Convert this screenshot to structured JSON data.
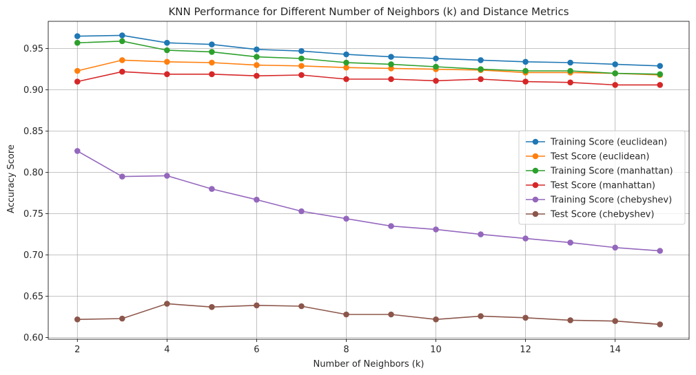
{
  "chart_data": {
    "type": "line",
    "title": "KNN Performance for Different Number of Neighbors (k) and Distance Metrics",
    "xlabel": "Number of Neighbors (k)",
    "ylabel": "Accuracy Score",
    "x": [
      2,
      3,
      4,
      5,
      6,
      7,
      8,
      9,
      10,
      11,
      12,
      13,
      14,
      15
    ],
    "xlim": [
      1.35,
      15.65
    ],
    "ylim": [
      0.598,
      0.983
    ],
    "xticks": [
      2,
      4,
      6,
      8,
      10,
      12,
      14
    ],
    "xtick_labels": [
      "2",
      "4",
      "6",
      "8",
      "10",
      "12",
      "14"
    ],
    "yticks": [
      0.6,
      0.65,
      0.7,
      0.75,
      0.8,
      0.85,
      0.9,
      0.95
    ],
    "ytick_labels": [
      "0.60",
      "0.65",
      "0.70",
      "0.75",
      "0.80",
      "0.85",
      "0.90",
      "0.95"
    ],
    "grid": true,
    "legend_position": "center-right",
    "series": [
      {
        "name": "Training Score (euclidean)",
        "color": "#1f77b4",
        "values": [
          0.965,
          0.966,
          0.957,
          0.955,
          0.949,
          0.947,
          0.943,
          0.94,
          0.938,
          0.936,
          0.934,
          0.933,
          0.931,
          0.929
        ]
      },
      {
        "name": "Test Score (euclidean)",
        "color": "#ff7f0e",
        "values": [
          0.923,
          0.936,
          0.934,
          0.933,
          0.93,
          0.929,
          0.927,
          0.926,
          0.925,
          0.924,
          0.921,
          0.921,
          0.92,
          0.918
        ]
      },
      {
        "name": "Training Score (manhattan)",
        "color": "#2ca02c",
        "values": [
          0.957,
          0.959,
          0.948,
          0.946,
          0.94,
          0.938,
          0.933,
          0.931,
          0.928,
          0.925,
          0.923,
          0.923,
          0.92,
          0.919
        ]
      },
      {
        "name": "Test Score (manhattan)",
        "color": "#d62728",
        "values": [
          0.91,
          0.922,
          0.919,
          0.919,
          0.917,
          0.918,
          0.913,
          0.913,
          0.911,
          0.913,
          0.91,
          0.909,
          0.906,
          0.906
        ]
      },
      {
        "name": "Training Score (chebyshev)",
        "color": "#9467bd",
        "values": [
          0.826,
          0.795,
          0.796,
          0.78,
          0.767,
          0.753,
          0.744,
          0.735,
          0.731,
          0.725,
          0.72,
          0.715,
          0.709,
          0.705
        ]
      },
      {
        "name": "Test Score (chebyshev)",
        "color": "#8c564b",
        "values": [
          0.622,
          0.623,
          0.641,
          0.637,
          0.639,
          0.638,
          0.628,
          0.628,
          0.622,
          0.626,
          0.624,
          0.621,
          0.62,
          0.616
        ]
      }
    ]
  }
}
